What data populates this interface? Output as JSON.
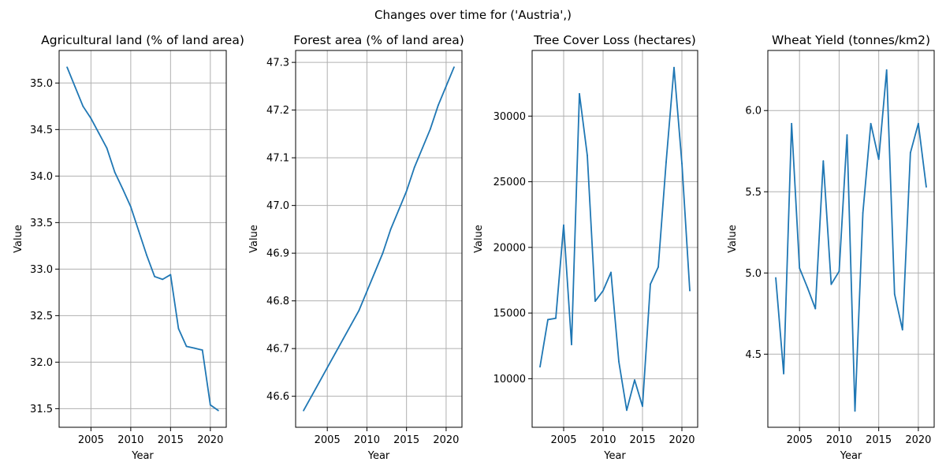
{
  "suptitle": "Changes over time for ('Austria',)",
  "colors": {
    "series": "#1f77b4",
    "grid": "#b0b0b0"
  },
  "chart_data": [
    {
      "type": "line",
      "title": "Agricultural land (% of land area)",
      "xlabel": "Year",
      "ylabel": "Value",
      "grid": true,
      "xlim": [
        2001,
        2022
      ],
      "ylim": [
        31.3,
        35.35
      ],
      "xticks": [
        2005,
        2010,
        2015,
        2020
      ],
      "yticks": [
        31.5,
        32.0,
        32.5,
        33.0,
        33.5,
        34.0,
        34.5,
        35.0
      ],
      "ytick_labels": [
        "31.5",
        "32.0",
        "32.5",
        "33.0",
        "33.5",
        "34.0",
        "34.5",
        "35.0"
      ],
      "x": [
        2002,
        2003,
        2004,
        2005,
        2006,
        2007,
        2008,
        2009,
        2010,
        2011,
        2012,
        2013,
        2014,
        2015,
        2016,
        2017,
        2018,
        2019,
        2020,
        2021
      ],
      "y": [
        35.17,
        34.96,
        34.75,
        34.62,
        34.46,
        34.3,
        34.04,
        33.86,
        33.67,
        33.41,
        33.15,
        32.92,
        32.89,
        32.94,
        32.36,
        32.17,
        32.15,
        32.13,
        31.54,
        31.48
      ]
    },
    {
      "type": "line",
      "title": "Forest area (% of land area)",
      "xlabel": "Year",
      "ylabel": "Value",
      "grid": true,
      "xlim": [
        2001,
        2022
      ],
      "ylim": [
        46.535,
        47.325
      ],
      "xticks": [
        2005,
        2010,
        2015,
        2020
      ],
      "yticks": [
        46.6,
        46.7,
        46.8,
        46.9,
        47.0,
        47.1,
        47.2,
        47.3
      ],
      "ytick_labels": [
        "46.6",
        "46.7",
        "46.8",
        "46.9",
        "47.0",
        "47.1",
        "47.2",
        "47.3"
      ],
      "x": [
        2002,
        2003,
        2004,
        2005,
        2006,
        2007,
        2008,
        2009,
        2010,
        2011,
        2012,
        2013,
        2014,
        2015,
        2016,
        2017,
        2018,
        2019,
        2020,
        2021
      ],
      "y": [
        46.57,
        46.6,
        46.63,
        46.66,
        46.69,
        46.72,
        46.75,
        46.78,
        46.82,
        46.86,
        46.9,
        46.95,
        46.99,
        47.03,
        47.08,
        47.12,
        47.16,
        47.21,
        47.25,
        47.29
      ]
    },
    {
      "type": "line",
      "title": "Tree Cover Loss (hectares)",
      "xlabel": "Year",
      "ylabel": "Value",
      "grid": true,
      "xlim": [
        2001,
        2022
      ],
      "ylim": [
        6300,
        35000
      ],
      "xticks": [
        2005,
        2010,
        2015,
        2020
      ],
      "yticks": [
        10000,
        15000,
        20000,
        25000,
        30000
      ],
      "ytick_labels": [
        "10000",
        "15000",
        "20000",
        "25000",
        "30000"
      ],
      "x": [
        2002,
        2003,
        2004,
        2005,
        2006,
        2007,
        2008,
        2009,
        2010,
        2011,
        2012,
        2013,
        2014,
        2015,
        2016,
        2017,
        2018,
        2019,
        2020,
        2021
      ],
      "y": [
        10900,
        14500,
        14600,
        21700,
        12600,
        31700,
        27000,
        15900,
        16700,
        18100,
        11300,
        7600,
        9900,
        7900,
        17200,
        18500,
        26500,
        33700,
        26400,
        16700
      ]
    },
    {
      "type": "line",
      "title": "Wheat Yield (tonnes/km2)",
      "xlabel": "Year",
      "ylabel": "Value",
      "grid": true,
      "xlim": [
        2001,
        2022
      ],
      "ylim": [
        4.05,
        6.37
      ],
      "xticks": [
        2005,
        2010,
        2015,
        2020
      ],
      "yticks": [
        4.5,
        5.0,
        5.5,
        6.0
      ],
      "ytick_labels": [
        "4.5",
        "5.0",
        "5.5",
        "6.0"
      ],
      "x": [
        2002,
        2003,
        2004,
        2005,
        2006,
        2007,
        2008,
        2009,
        2010,
        2011,
        2012,
        2013,
        2014,
        2015,
        2016,
        2017,
        2018,
        2019,
        2020,
        2021
      ],
      "y": [
        4.97,
        4.38,
        5.92,
        5.03,
        4.91,
        4.78,
        5.69,
        4.93,
        5.01,
        5.85,
        4.15,
        5.37,
        5.92,
        5.7,
        6.25,
        4.87,
        4.65,
        5.74,
        5.92,
        5.53
      ]
    }
  ]
}
